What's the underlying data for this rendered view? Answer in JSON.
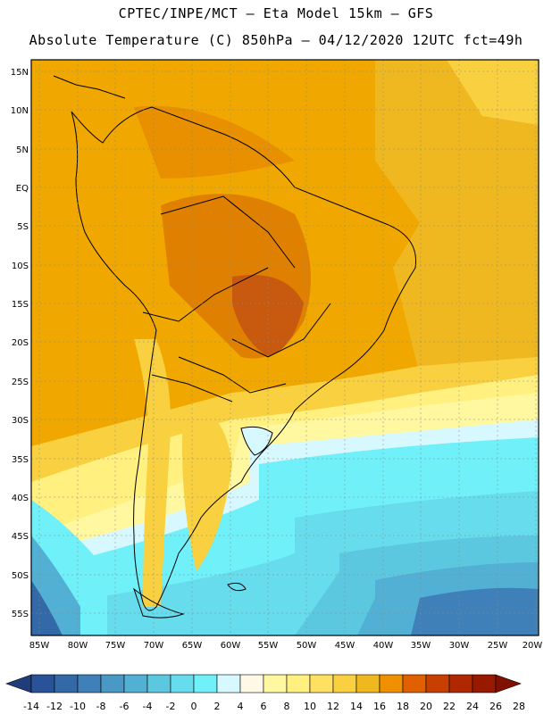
{
  "header": {
    "line1": "CPTEC/INPE/MCT –  Eta Model 15km – GFS",
    "line2": "Absolute Temperature (C) 850hPa – 04/12/2020 12UTC fct=49h"
  },
  "map": {
    "lat_labels": [
      "15N",
      "10N",
      "5N",
      "EQ",
      "5S",
      "10S",
      "15S",
      "20S",
      "25S",
      "30S",
      "35S",
      "40S",
      "45S",
      "50S",
      "55S"
    ],
    "lon_labels": [
      "85W",
      "80W",
      "75W",
      "70W",
      "65W",
      "60W",
      "55W",
      "50W",
      "45W",
      "40W",
      "35W",
      "30W",
      "25W",
      "20W"
    ],
    "field": "Absolute Temperature (C) 850hPa",
    "background_color": "#f0a800"
  },
  "colorbar": {
    "labels": [
      "-14",
      "-12",
      "-10",
      "-8",
      "-6",
      "-4",
      "-2",
      "0",
      "2",
      "4",
      "6",
      "8",
      "10",
      "12",
      "14",
      "16",
      "18",
      "20",
      "22",
      "24",
      "26",
      "28"
    ],
    "colors": [
      "#1f3d7a",
      "#2a5298",
      "#3469a8",
      "#3f80b8",
      "#4a98c4",
      "#52b0d4",
      "#5cc8e0",
      "#66dcec",
      "#70f0f8",
      "#d8f8ff",
      "#fff8e6",
      "#fff8a0",
      "#fff080",
      "#ffe060",
      "#f8d040",
      "#f0b820",
      "#f09000",
      "#e06000",
      "#c84000",
      "#b02800",
      "#981800",
      "#801000"
    ]
  }
}
